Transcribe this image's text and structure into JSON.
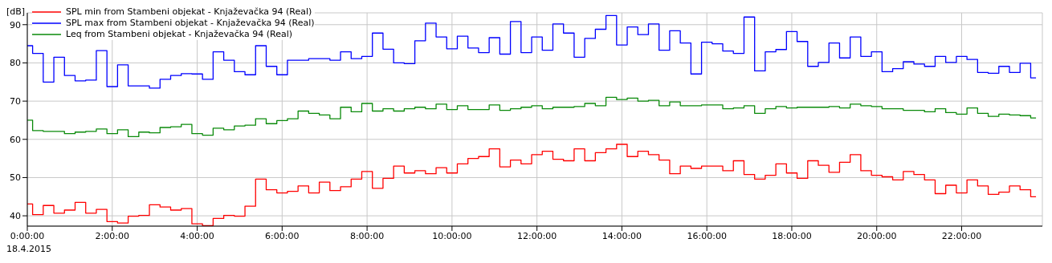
{
  "chart_data": {
    "type": "step",
    "ylabel": "[dB]",
    "annotations": [
      "18.4.2015"
    ],
    "x": [
      0,
      0.25,
      0.5,
      0.75,
      1,
      1.25,
      1.5,
      1.75,
      2,
      2.25,
      2.5,
      2.75,
      3,
      3.25,
      3.5,
      3.75,
      4,
      4.25,
      4.5,
      4.75,
      5,
      5.25,
      5.5,
      5.75,
      6,
      6.25,
      6.5,
      6.75,
      7,
      7.25,
      7.5,
      7.75,
      8,
      8.25,
      8.5,
      8.75,
      9,
      9.25,
      9.5,
      9.75,
      10,
      10.25,
      10.5,
      10.75,
      11,
      11.25,
      11.5,
      11.75,
      12,
      12.25,
      12.5,
      12.75,
      13,
      13.25,
      13.5,
      13.75,
      14,
      14.25,
      14.5,
      14.75,
      15,
      15.25,
      15.5,
      15.75,
      16,
      16.25,
      16.5,
      16.75,
      17,
      17.25,
      17.5,
      17.75,
      18,
      18.25,
      18.5,
      18.75,
      19,
      19.25,
      19.5,
      19.75,
      20,
      20.25,
      20.5,
      20.75,
      21,
      21.25,
      21.5,
      21.75,
      22,
      22.25,
      22.5,
      22.75,
      23,
      23.25,
      23.5,
      23.75
    ],
    "series": [
      {
        "name": "SPL min from Stambeni objekat - Knjaževačka 94 (Real)",
        "color": "#ff0000",
        "values": [
          43.1,
          40.3,
          42.7,
          40.7,
          41.5,
          43.5,
          40.7,
          41.7,
          38.5,
          38.1,
          39.9,
          40.1,
          42.9,
          42.3,
          41.5,
          41.9,
          37.9,
          37.4,
          39.3,
          40.1,
          39.9,
          42.5,
          49.6,
          46.8,
          46,
          46.4,
          47.8,
          46,
          48.8,
          46.6,
          47.6,
          49.6,
          51.6,
          47.2,
          49.8,
          53,
          51.2,
          51.8,
          51,
          52.6,
          51.2,
          53.6,
          55,
          55.5,
          57.5,
          52.8,
          54.6,
          53.6,
          56,
          56.9,
          54.8,
          54.4,
          57.5,
          54.4,
          56.5,
          57.5,
          58.7,
          55.5,
          56.9,
          56,
          54.6,
          51,
          53,
          52.4,
          53,
          53,
          51.8,
          54.4,
          50.8,
          49.6,
          50.6,
          53.6,
          51.2,
          49.8,
          54.4,
          53.2,
          51.4,
          54,
          56,
          51.8,
          50.6,
          50.2,
          49.4,
          51.6,
          50.8,
          49.4,
          45.8,
          48,
          46,
          49.4,
          47.8,
          45.6,
          46.2,
          47.8,
          46.8,
          45
        ]
      },
      {
        "name": "SPL max from Stambeni objekat - Knjaževačka 94 (Real)",
        "color": "#0000ff",
        "values": [
          84.5,
          82.5,
          75,
          81.5,
          76.7,
          75.3,
          75.5,
          83.2,
          73.8,
          79.5,
          74,
          74,
          73.4,
          75.7,
          76.7,
          77.2,
          77.1,
          75.7,
          82.9,
          80.7,
          77.7,
          76.9,
          84.5,
          79.1,
          76.9,
          80.7,
          80.7,
          81.1,
          81.1,
          80.7,
          82.9,
          81.1,
          81.7,
          87.8,
          83.6,
          80,
          79.8,
          85.8,
          90.4,
          86.8,
          83.7,
          87,
          83.9,
          82.7,
          86.6,
          82.3,
          90.8,
          82.7,
          86.8,
          83.3,
          90.2,
          87.8,
          81.5,
          86.4,
          88.8,
          92.4,
          84.7,
          89.4,
          87.4,
          90.2,
          83.3,
          88.4,
          85.2,
          77.1,
          85.4,
          85,
          83.1,
          82.5,
          92,
          77.9,
          82.9,
          83.5,
          88.2,
          85.6,
          79.1,
          80.1,
          85.2,
          81.3,
          86.8,
          81.7,
          82.9,
          77.7,
          78.5,
          80.3,
          79.7,
          79.1,
          81.7,
          80.1,
          81.7,
          80.9,
          77.5,
          77.3,
          79.1,
          77.5,
          79.9,
          76.1
        ]
      },
      {
        "name": "Leq from Stambeni objekat - Knjaževačka 94 (Real)",
        "color": "#0a8a0a",
        "values": [
          65,
          62.3,
          62.1,
          62.1,
          61.5,
          61.9,
          62.1,
          62.7,
          61.5,
          62.5,
          60.7,
          61.9,
          61.7,
          63.1,
          63.3,
          63.9,
          61.5,
          61.1,
          62.9,
          62.5,
          63.5,
          63.7,
          65.4,
          64.1,
          64.9,
          65.4,
          67.4,
          66.8,
          66.4,
          65.4,
          68.4,
          67.2,
          69.4,
          67.4,
          68,
          67.4,
          68,
          68.4,
          68,
          69.2,
          67.8,
          68.8,
          67.8,
          67.8,
          69,
          67.6,
          68,
          68.4,
          68.8,
          68,
          68.4,
          68.4,
          68.6,
          69.4,
          68.8,
          71,
          70.4,
          70.8,
          70,
          70.2,
          68.8,
          69.8,
          68.8,
          68.8,
          69,
          69,
          68,
          68.2,
          68.8,
          66.8,
          68,
          68.6,
          68.2,
          68.4,
          68.4,
          68.4,
          68.6,
          68.2,
          69.2,
          68.8,
          68.6,
          68,
          68,
          67.6,
          67.6,
          67.2,
          68,
          67,
          66.6,
          68.2,
          66.8,
          66,
          66.6,
          66.4,
          66.2,
          65.6
        ]
      }
    ],
    "xlim": [
      0,
      23.9
    ],
    "xticks": [
      {
        "value": 0,
        "label": "0:00:00"
      },
      {
        "value": 2,
        "label": "2:00:00"
      },
      {
        "value": 4,
        "label": "4:00:00"
      },
      {
        "value": 6,
        "label": "6:00:00"
      },
      {
        "value": 8,
        "label": "8:00:00"
      },
      {
        "value": 10,
        "label": "10:00:00"
      },
      {
        "value": 12,
        "label": "12:00:00"
      },
      {
        "value": 14,
        "label": "14:00:00"
      },
      {
        "value": 16,
        "label": "16:00:00"
      },
      {
        "value": 18,
        "label": "18:00:00"
      },
      {
        "value": 20,
        "label": "20:00:00"
      },
      {
        "value": 22,
        "label": "22:00:00"
      }
    ],
    "ylim": [
      37.3,
      93.1
    ],
    "yticks": [
      40,
      50,
      60,
      70,
      80,
      90
    ],
    "grid": true,
    "legend": "top left",
    "marker": "none",
    "line_style": "solid"
  }
}
